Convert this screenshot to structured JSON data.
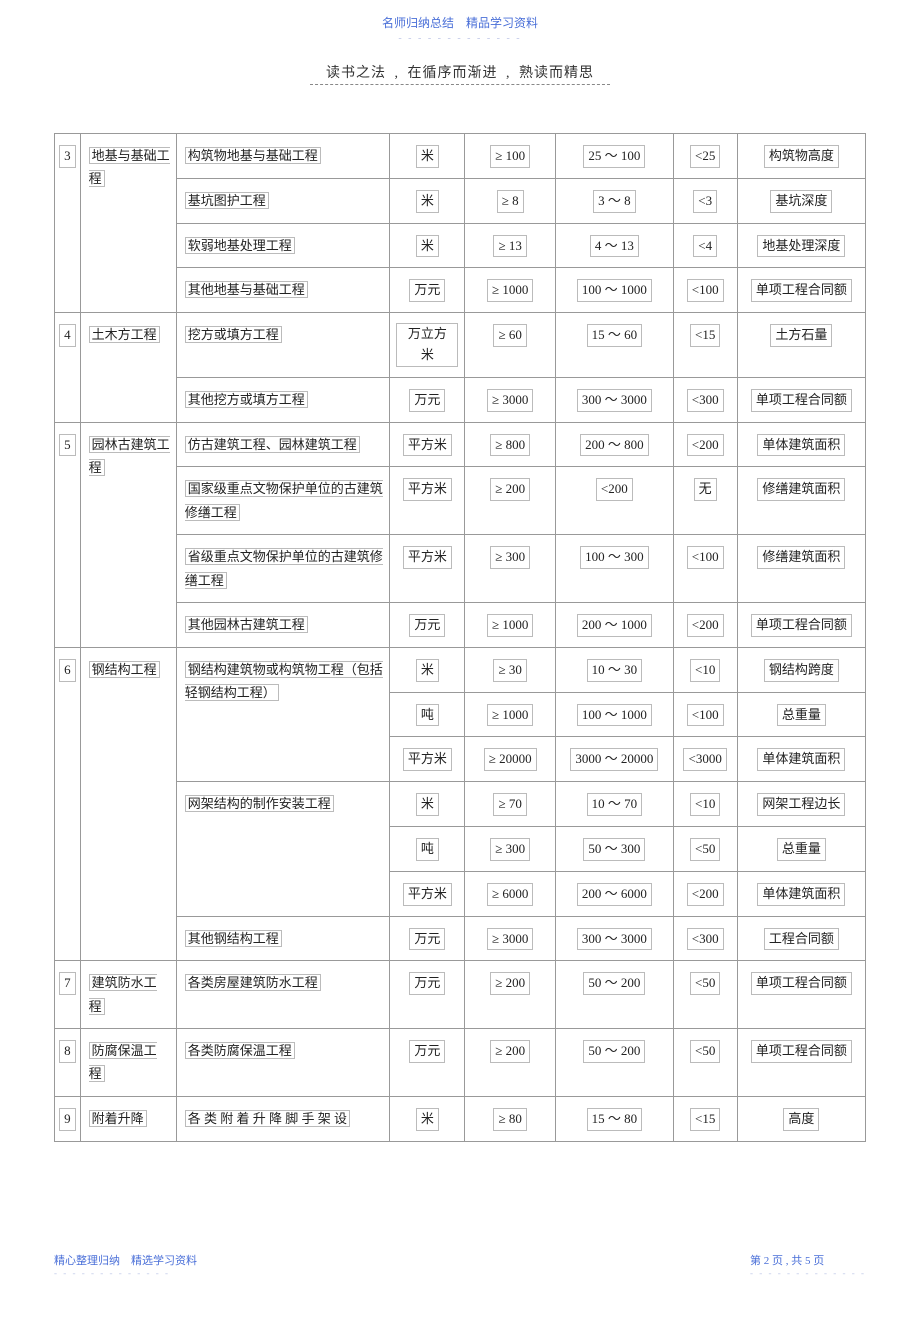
{
  "header": {
    "top": "名师归纳总结　精品学习资料",
    "dots": "- - - - - - - - - - - - -",
    "sub": "读书之法 , 在循序而渐进  , 熟读而精思",
    "underline": true
  },
  "footer": {
    "left": "精心整理归纳　精选学习资料",
    "dots": "- - - - - - - - - - - - -",
    "right": "第 2 页 , 共 5 页"
  },
  "rows": [
    {
      "idx": "",
      "cat": "",
      "sub": "构筑物地基与基础工程",
      "unit": "米",
      "a": "≥ 100",
      "b": "25 ～ 100",
      "c": "<25",
      "note": "构筑物高度"
    },
    {
      "idx": "3",
      "cat": "地基与基础工程",
      "sub": "基坑图护工程",
      "unit": "米",
      "a": "≥ 8",
      "b": "3 ～ 8",
      "c": "<3",
      "note": "基坑深度"
    },
    {
      "idx": "",
      "cat": "",
      "sub": "软弱地基处理工程",
      "unit": "米",
      "a": "≥ 13",
      "b": "4 ～ 13",
      "c": "<4",
      "note": "地基处理深度"
    },
    {
      "idx": "",
      "cat": "",
      "sub": "其他地基与基础工程",
      "unit": "万元",
      "a": "≥ 1000",
      "b": "100 ～ 1000",
      "c": "<100",
      "note": "单项工程合同额"
    },
    {
      "idx": "4",
      "cat": "土木方工程",
      "sub": "挖方或填方工程",
      "unit": "万立方米",
      "a": "≥ 60",
      "b": "15 ～ 60",
      "c": "<15",
      "note": "土方石量"
    },
    {
      "idx": "",
      "cat": "",
      "sub": "其他挖方或填方工程",
      "unit": "万元",
      "a": "≥ 3000",
      "b": "300 ～ 3000",
      "c": "<300",
      "note": "单项工程合同额"
    },
    {
      "idx": "",
      "cat": "",
      "sub": "仿古建筑工程、园林建筑工程",
      "unit": "平方米",
      "a": "≥ 800",
      "b": "200 ～ 800",
      "c": "<200",
      "note": "单体建筑面积"
    },
    {
      "idx": "5",
      "cat": "园林古建筑工程",
      "sub": "国家级重点文物保护单位的古建筑修缮工程",
      "unit": "平方米",
      "a": "≥ 200",
      "b": "<200",
      "c": "无",
      "note": "修缮建筑面积"
    },
    {
      "idx": "",
      "cat": "",
      "sub": "省级重点文物保护单位的古建筑修缮工程",
      "unit": "平方米",
      "a": "≥ 300",
      "b": "100 ～ 300",
      "c": "<100",
      "note": "修缮建筑面积"
    },
    {
      "idx": "",
      "cat": "",
      "sub": "其他园林古建筑工程",
      "unit": "万元",
      "a": "≥ 1000",
      "b": "200 ～ 1000",
      "c": "<200",
      "note": "单项工程合同额"
    },
    {
      "idx": "",
      "cat": "",
      "sub": "钢结构建筑物或构筑物工程（包括轻钢结构工程）",
      "unit": "米",
      "a": "≥ 30",
      "b": "10 ～ 30",
      "c": "<10",
      "note": "钢结构跨度",
      "subRowspan": 3
    },
    {
      "idx": "",
      "cat": "",
      "sub": "",
      "unit": "吨",
      "a": "≥ 1000",
      "b": "100 ～ 1000",
      "c": "<100",
      "note": "总重量",
      "skipSub": true
    },
    {
      "idx": "6",
      "cat": "钢结构工程",
      "sub": "",
      "unit": "平方米",
      "a": "≥ 20000",
      "b": "3000 ～ 20000",
      "c": "<3000",
      "note": "单体建筑面积",
      "skipSub": true
    },
    {
      "idx": "",
      "cat": "",
      "sub": "网架结构的制作安装工程",
      "unit": "米",
      "a": "≥ 70",
      "b": "10 ～ 70",
      "c": "<10",
      "note": "网架工程边长",
      "subRowspan": 3
    },
    {
      "idx": "",
      "cat": "",
      "sub": "",
      "unit": "吨",
      "a": "≥ 300",
      "b": "50 ～ 300",
      "c": "<50",
      "note": "总重量",
      "skipSub": true
    },
    {
      "idx": "",
      "cat": "",
      "sub": "",
      "unit": "平方米",
      "a": "≥ 6000",
      "b": "200 ～ 6000",
      "c": "<200",
      "note": "单体建筑面积",
      "skipSub": true
    },
    {
      "idx": "",
      "cat": "",
      "sub": "其他钢结构工程",
      "unit": "万元",
      "a": "≥ 3000",
      "b": "300 ～ 3000",
      "c": "<300",
      "note": "工程合同额"
    },
    {
      "idx": "7",
      "cat": "建筑防水工程",
      "sub": "各类房屋建筑防水工程",
      "unit": "万元",
      "a": "≥ 200",
      "b": "50 ～ 200",
      "c": "<50",
      "note": "单项工程合同额"
    },
    {
      "idx": "8",
      "cat": "防腐保温工程",
      "sub": "各类防腐保温工程",
      "unit": "万元",
      "a": "≥ 200",
      "b": "50 ～ 200",
      "c": "<50",
      "note": "单项工程合同额"
    },
    {
      "idx": "9",
      "cat": "附着升降",
      "sub": "各 类 附 着 升 降 脚 手 架 设",
      "unit": "米",
      "a": "≥ 80",
      "b": "15 ～ 80",
      "c": "<15",
      "note": "高度"
    }
  ],
  "groups": [
    {
      "start": 0,
      "idxSpan": 4,
      "catSpan": 4,
      "idxRow": 1,
      "catRow": 1
    },
    {
      "start": 4,
      "idxSpan": 2,
      "catSpan": 2,
      "idxRow": 4,
      "catRow": 4
    },
    {
      "start": 6,
      "idxSpan": 4,
      "catSpan": 4,
      "idxRow": 7,
      "catRow": 7
    },
    {
      "start": 10,
      "idxSpan": 7,
      "catSpan": 7,
      "idxRow": 12,
      "catRow": 12
    },
    {
      "start": 17,
      "idxSpan": 1,
      "catSpan": 1,
      "idxRow": 17,
      "catRow": 17
    },
    {
      "start": 18,
      "idxSpan": 1,
      "catSpan": 1,
      "idxRow": 18,
      "catRow": 18
    },
    {
      "start": 19,
      "idxSpan": 1,
      "catSpan": 1,
      "idxRow": 19,
      "catRow": 19
    }
  ]
}
